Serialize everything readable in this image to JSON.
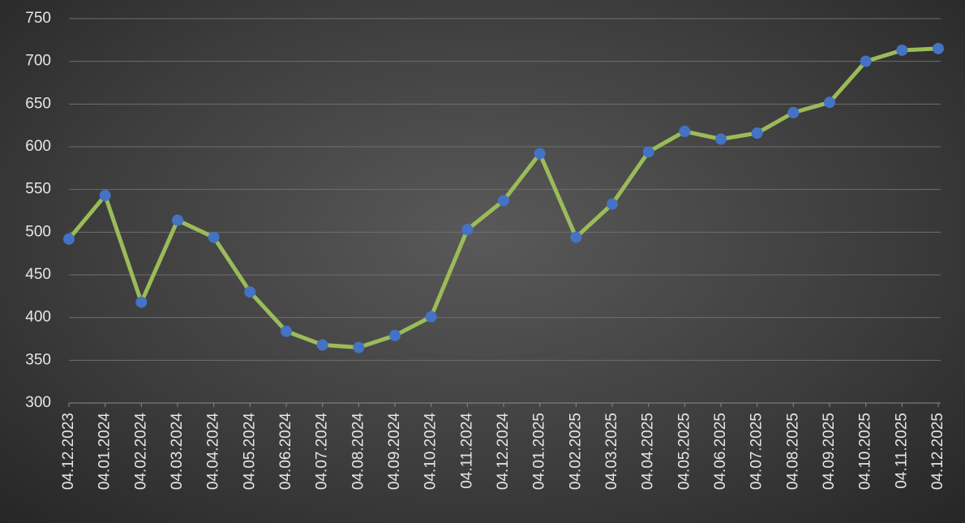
{
  "chart_data": {
    "type": "line",
    "categories": [
      "04.12.2023",
      "04.01.2024",
      "04.02.2024",
      "04.03.2024",
      "04.04.2024",
      "04.05.2024",
      "04.06.2024",
      "04.07.2024",
      "04.08.2024",
      "04.09.2024",
      "04.10.2024",
      "04.11.2024",
      "04.12.2024",
      "04.01.2025",
      "04.02.2025",
      "04.03.2025",
      "04.04.2025",
      "04.05.2025",
      "04.06.2025",
      "04.07.2025",
      "04.08.2025",
      "04.09.2025",
      "04.10.2025",
      "04.11.2025",
      "04.12.2025"
    ],
    "series": [
      {
        "color": "#9bbb59",
        "marker_color": "#4472c4",
        "values": [
          492,
          543,
          418,
          514,
          494,
          430,
          384,
          368,
          365,
          379,
          401,
          503,
          537,
          592,
          494,
          533,
          594,
          618,
          609,
          616,
          640,
          652,
          700,
          713,
          715
        ]
      }
    ],
    "ylim": [
      300,
      750
    ],
    "yticks": [
      300,
      350,
      400,
      450,
      500,
      550,
      600,
      650,
      700,
      750
    ],
    "grid": true
  }
}
